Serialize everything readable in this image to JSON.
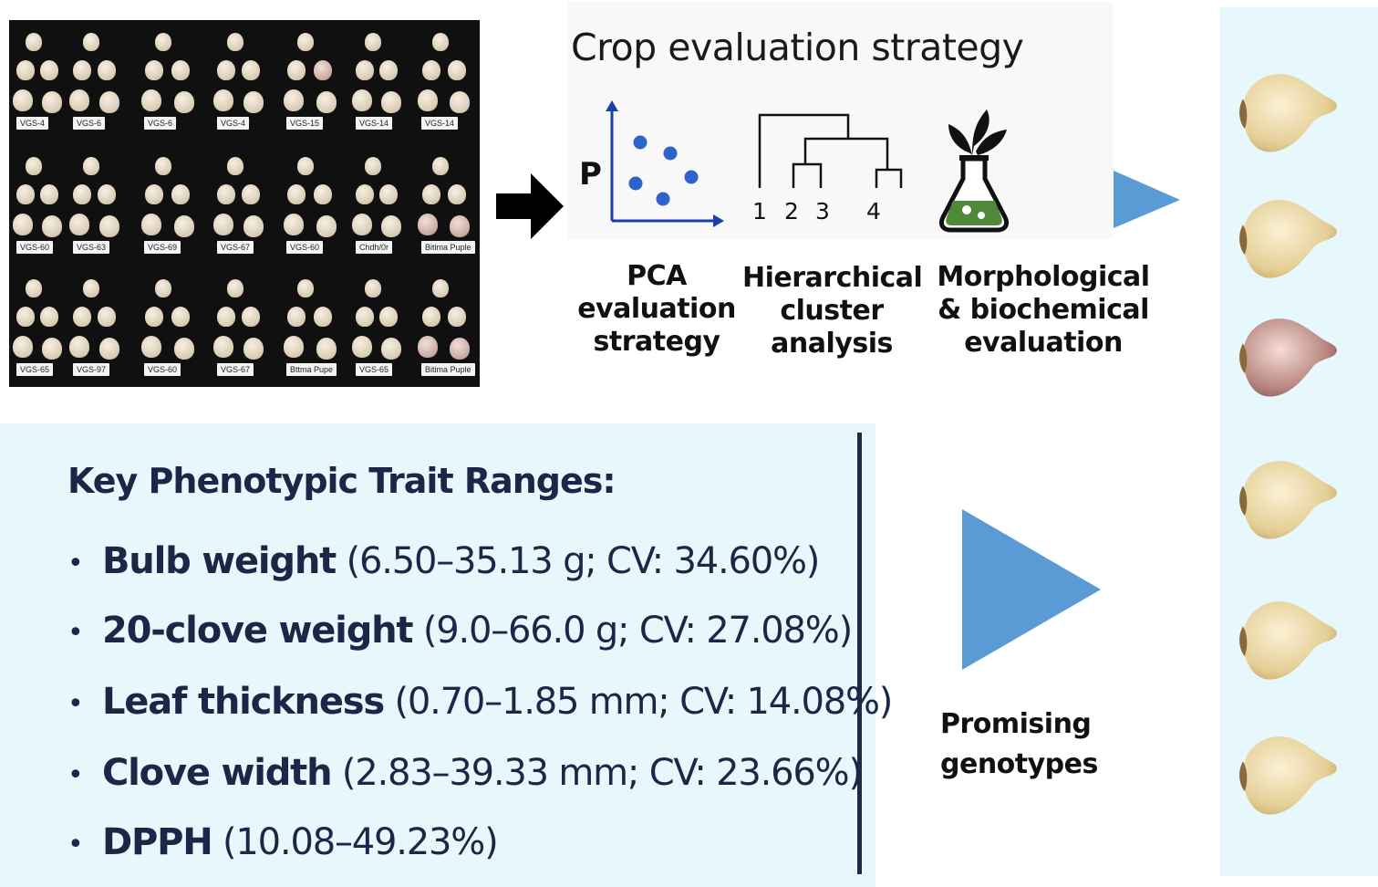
{
  "photo_labels": [
    [
      "VGS-4",
      "VGS-6",
      "VGS-6",
      "VGS-4",
      "VGS-15",
      "VGS-14",
      "VGS-14"
    ],
    [
      "VGS-60",
      "VGS-63",
      "VGS-69",
      "VGS-67",
      "VGS-60",
      "Chdh/0r",
      "Bitima Puple"
    ],
    [
      "VGS-65",
      "VGS-97",
      "VGS-60",
      "VGS-67",
      "Bttma Pupe",
      "VGS-65",
      "Bitima Puple"
    ]
  ],
  "strategy": {
    "title": "Crop evaluation strategy",
    "pca_axis_label": "P",
    "dendro_leaves": [
      "1",
      "2",
      "3",
      "4"
    ],
    "methods": [
      {
        "line1": "PCA",
        "line2": "evaluation",
        "line3": "strategy"
      },
      {
        "line1": "Hierarchical",
        "line2": "cluster",
        "line3": "analysis"
      },
      {
        "line1": "Morphological",
        "line2": "& biochemical",
        "line3": "evaluation"
      }
    ]
  },
  "traits": {
    "heading": "Key Phenotypic Trait Ranges:",
    "items": [
      {
        "name": "Bulb weight",
        "range": " (6.50–35.13 g; CV: 34.60%)"
      },
      {
        "name": "20-clove weight",
        "range": " (9.0–66.0 g; CV: 27.08%)"
      },
      {
        "name": "Leaf thickness",
        "range": " (0.70–1.85 mm; CV: 14.08%)"
      },
      {
        "name": "Clove width",
        "range": " (2.83–39.33 mm; CV: 23.66%)"
      },
      {
        "name": "DPPH",
        "range": " (10.08–49.23%)"
      }
    ]
  },
  "result": {
    "line1": "Promising",
    "line2": "genotypes"
  },
  "colors": {
    "arrow_blue": "#5b9bd5",
    "panel_bg": "#e7f8fc",
    "text_navy": "#1a2746",
    "flask_green": "#4e8a3a"
  },
  "icons": [
    "scatter-plot-icon",
    "dendrogram-icon",
    "flask-sprout-icon",
    "black-right-arrow-icon",
    "blue-triangle-icon"
  ]
}
